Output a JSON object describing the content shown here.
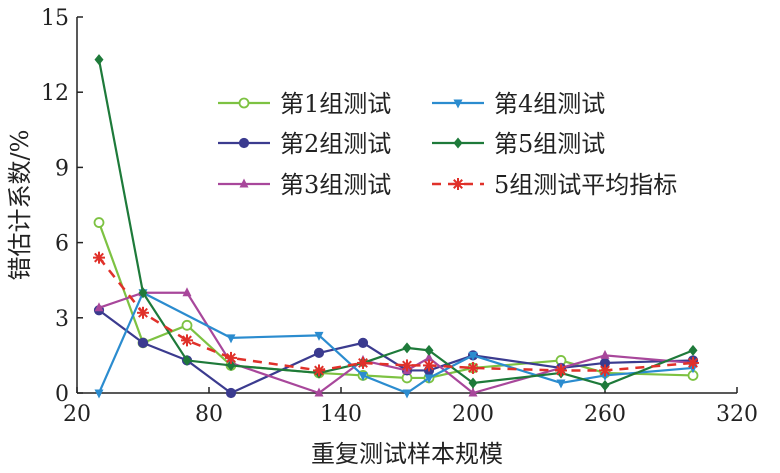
{
  "chart_data": {
    "type": "line",
    "xlabel": "重复测试样本规模",
    "ylabel": "错估计系数/%",
    "xlim": [
      20,
      320
    ],
    "ylim": [
      0,
      15
    ],
    "xticks": [
      20,
      80,
      140,
      200,
      260,
      320
    ],
    "yticks": [
      0,
      3,
      6,
      9,
      12,
      15
    ],
    "xtick_labels": [
      "20",
      "80",
      "140",
      "200",
      "260",
      "320"
    ],
    "ytick_labels": [
      "0",
      "3",
      "6",
      "9",
      "12",
      "15"
    ],
    "grid": false,
    "legend_position": "top-right",
    "series": [
      {
        "name": "第1组测试",
        "color": "#7dc242",
        "marker": "circle-open",
        "dashed": false,
        "x": [
          30,
          50,
          70,
          90,
          130,
          150,
          170,
          180,
          200,
          240,
          260,
          300
        ],
        "y": [
          6.8,
          2.0,
          2.7,
          1.1,
          0.8,
          0.7,
          0.6,
          0.6,
          1.0,
          1.3,
          0.8,
          0.7
        ]
      },
      {
        "name": "第2组测试",
        "color": "#3b3b8f",
        "marker": "circle",
        "dashed": false,
        "x": [
          30,
          50,
          70,
          90,
          130,
          150,
          170,
          180,
          200,
          240,
          260,
          300
        ],
        "y": [
          3.3,
          2.0,
          1.3,
          0.0,
          1.6,
          2.0,
          0.9,
          0.9,
          1.5,
          1.0,
          1.2,
          1.3
        ]
      },
      {
        "name": "第3组测试",
        "color": "#a8479b",
        "marker": "triangle-up",
        "dashed": false,
        "x": [
          30,
          50,
          70,
          90,
          130,
          150,
          170,
          180,
          200,
          240,
          260,
          300
        ],
        "y": [
          3.4,
          4.0,
          4.0,
          1.2,
          0.0,
          1.3,
          0.9,
          1.4,
          0.0,
          1.0,
          1.5,
          1.2
        ]
      },
      {
        "name": "第4组测试",
        "color": "#2b8ccf",
        "marker": "triangle-down",
        "dashed": false,
        "x": [
          30,
          50,
          90,
          130,
          150,
          170,
          180,
          200,
          240,
          260,
          300
        ],
        "y": [
          0.0,
          4.0,
          2.2,
          2.3,
          0.7,
          0.0,
          0.6,
          1.5,
          0.4,
          0.7,
          1.0
        ]
      },
      {
        "name": "第5组测试",
        "color": "#1e7a3a",
        "marker": "diamond",
        "dashed": false,
        "x": [
          30,
          50,
          70,
          90,
          130,
          150,
          170,
          180,
          200,
          240,
          260,
          300
        ],
        "y": [
          13.3,
          4.0,
          1.3,
          1.1,
          0.8,
          1.2,
          1.8,
          1.7,
          0.4,
          0.8,
          0.3,
          1.7
        ]
      },
      {
        "name": "5组测试平均指标",
        "color": "#e0312a",
        "marker": "asterisk",
        "dashed": true,
        "x": [
          30,
          50,
          70,
          90,
          130,
          150,
          170,
          180,
          200,
          240,
          260,
          300
        ],
        "y": [
          5.4,
          3.2,
          2.1,
          1.4,
          0.9,
          1.2,
          1.1,
          1.1,
          1.0,
          0.9,
          0.9,
          1.2
        ]
      }
    ]
  }
}
